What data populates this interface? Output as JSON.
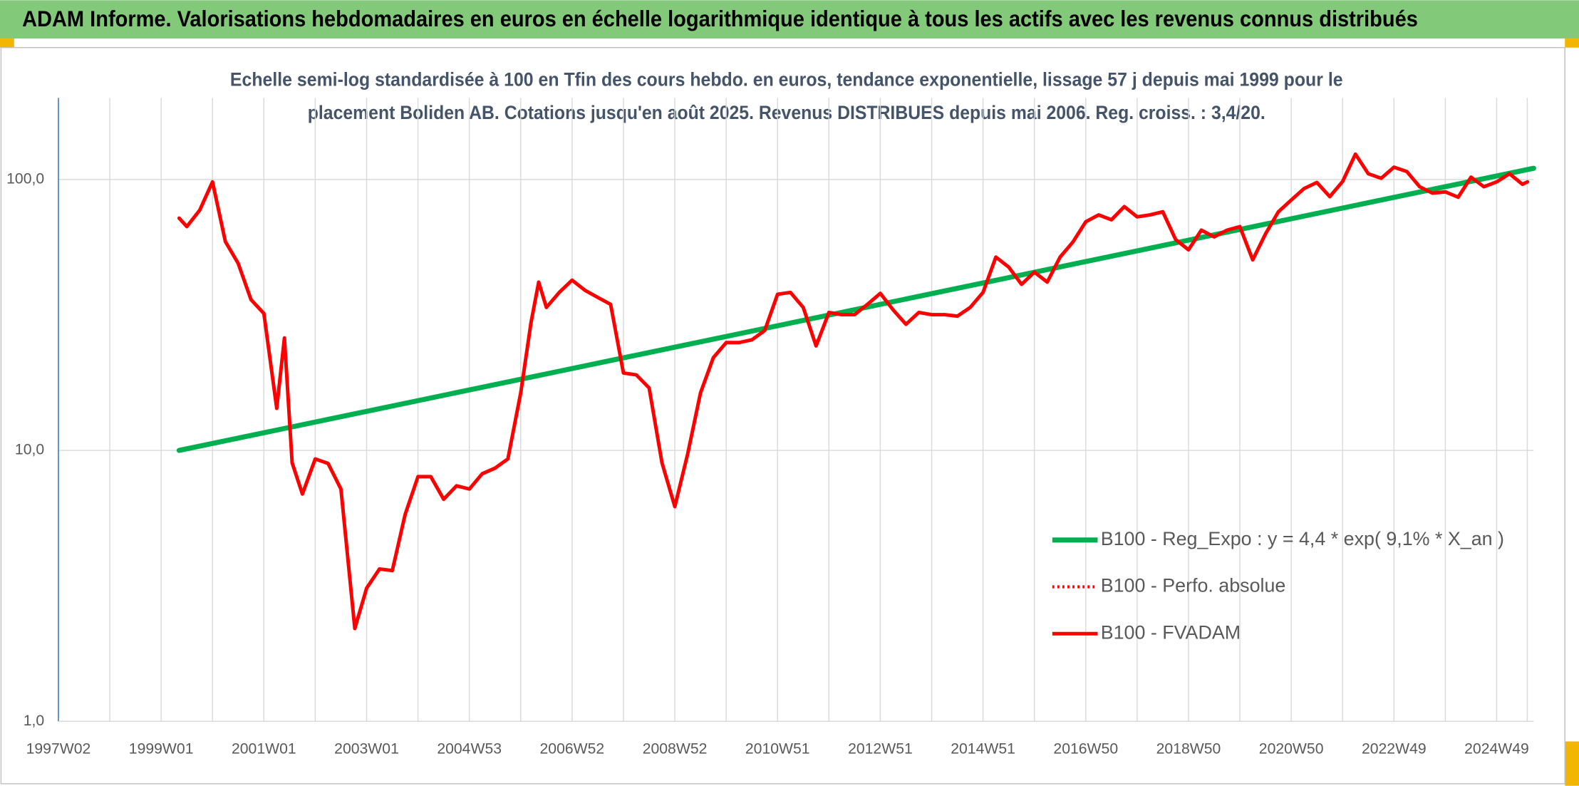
{
  "chart_data": {
    "type": "line",
    "title": "ADAM Informe. Valorisations hebdomadaires en euros en échelle logarithmique identique à tous les actifs avec les revenus connus distribués",
    "subtitle": [
      "Echelle semi-log standardisée à 100 en Tfin des cours hebdo. en euros, tendance exponentielle, lissage 57 j depuis mai 1999 pour le",
      "placement Boliden AB. Cotations jusqu'en août 2025. Revenus DISTRIBUES depuis mai 2006. Reg. croiss. : 3,4/20."
    ],
    "xlim": [
      1997,
      2025.72
    ],
    "xticks": [
      {
        "value": 1997,
        "label": "1997W02"
      },
      {
        "value": 1999,
        "label": "1999W01"
      },
      {
        "value": 2001,
        "label": "2001W01"
      },
      {
        "value": 2003,
        "label": "2003W01"
      },
      {
        "value": 2005,
        "label": "2004W53"
      },
      {
        "value": 2007,
        "label": "2006W52"
      },
      {
        "value": 2009,
        "label": "2008W52"
      },
      {
        "value": 2011,
        "label": "2010W51"
      },
      {
        "value": 2013,
        "label": "2012W51"
      },
      {
        "value": 2015,
        "label": "2014W51"
      },
      {
        "value": 2017,
        "label": "2016W50"
      },
      {
        "value": 2019,
        "label": "2018W50"
      },
      {
        "value": 2021,
        "label": "2020W50"
      },
      {
        "value": 2023,
        "label": "2022W49"
      },
      {
        "value": 2025,
        "label": "2024W49"
      }
    ],
    "ylim": [
      1,
      200
    ],
    "yticks": [
      {
        "value": 1,
        "label": "1,0"
      },
      {
        "value": 10,
        "label": "10,0"
      },
      {
        "value": 100,
        "label": "100,0"
      }
    ],
    "log_scale": true,
    "grid": true,
    "legend": "right",
    "series": [
      {
        "name": "B100 - Reg_Expo : y = 4,4 * exp( 9,1% *  X_an )",
        "color": "#00b050",
        "style": "solid",
        "x": [
          1999.35,
          2025.72
        ],
        "values": [
          10,
          110
        ]
      },
      {
        "name": "B100 - Perfo. absolue",
        "color": "#ff0000",
        "style": "dotted",
        "x": [
          1999.35,
          1999.5,
          1999.75,
          2000.0,
          2000.25,
          2000.5,
          2000.75,
          2001.0,
          2001.25,
          2001.4,
          2001.55,
          2001.75,
          2002.0,
          2002.25,
          2002.5,
          2002.77,
          2003.0,
          2003.25,
          2003.5,
          2003.75,
          2004.0,
          2004.25,
          2004.5,
          2004.75,
          2005.0,
          2005.25,
          2005.5,
          2005.75,
          2006.0,
          2006.2,
          2006.35,
          2006.5,
          2006.75,
          2007.0,
          2007.25,
          2007.5,
          2007.75,
          2008.0,
          2008.25,
          2008.5,
          2008.75,
          2009.0,
          2009.25,
          2009.5,
          2009.75,
          2010.0,
          2010.25,
          2010.5,
          2010.75,
          2011.0,
          2011.25,
          2011.5,
          2011.75,
          2012.0,
          2012.25,
          2012.5,
          2012.75,
          2013.0,
          2013.25,
          2013.5,
          2013.75,
          2014.0,
          2014.25,
          2014.5,
          2014.75,
          2015.0,
          2015.25,
          2015.5,
          2015.75,
          2016.0,
          2016.25,
          2016.5,
          2016.75,
          2017.0,
          2017.25,
          2017.5,
          2017.75,
          2018.0,
          2018.25,
          2018.5,
          2018.75,
          2019.0,
          2019.25,
          2019.5,
          2019.75,
          2020.0,
          2020.25,
          2020.5,
          2020.75,
          2021.0,
          2021.25,
          2021.5,
          2021.75,
          2022.0,
          2022.25,
          2022.5,
          2022.75,
          2023.0,
          2023.25,
          2023.5,
          2023.75,
          2024.0,
          2024.25,
          2024.5,
          2024.75,
          2025.0,
          2025.25,
          2025.5,
          2025.6
        ],
        "values": [
          72,
          67,
          77,
          98,
          59,
          49,
          36,
          32,
          14.3,
          26,
          9,
          6.9,
          9.3,
          8.95,
          7.2,
          2.2,
          3.1,
          3.65,
          3.6,
          5.8,
          8,
          8,
          6.6,
          7.4,
          7.2,
          8.2,
          8.6,
          9.3,
          16.3,
          29.6,
          41.8,
          33.7,
          38.3,
          42.5,
          39,
          36.7,
          34.6,
          19.3,
          19,
          17,
          9,
          6.2,
          9.7,
          16.3,
          22,
          25,
          25,
          25.6,
          27.7,
          37.7,
          38.3,
          33.7,
          24.3,
          32.3,
          31.7,
          31.7,
          34.6,
          38,
          33,
          29.2,
          32.3,
          31.7,
          31.7,
          31.3,
          33.7,
          38.3,
          51.7,
          47.5,
          41,
          45.5,
          41.8,
          51.7,
          58.8,
          69.8,
          74,
          71,
          79.4,
          72.8,
          74,
          76,
          60,
          55,
          65,
          61.4,
          65,
          67,
          50.5,
          63,
          76,
          84,
          92.6,
          97.5,
          86.4,
          98.3,
          124,
          105,
          101,
          111,
          107,
          94,
          89,
          90,
          86,
          102,
          94,
          98,
          105,
          96,
          98
        ]
      },
      {
        "name": "B100 - FVADAM",
        "color": "#ff0000",
        "style": "solid",
        "x": [
          1999.35,
          1999.5,
          1999.75,
          2000.0,
          2000.25,
          2000.5,
          2000.75,
          2001.0,
          2001.25,
          2001.4,
          2001.55,
          2001.75,
          2002.0,
          2002.25,
          2002.5,
          2002.77,
          2003.0,
          2003.25,
          2003.5,
          2003.75,
          2004.0,
          2004.25,
          2004.5,
          2004.75,
          2005.0,
          2005.25,
          2005.5,
          2005.75,
          2006.0,
          2006.2,
          2006.35,
          2006.5,
          2006.75,
          2007.0,
          2007.25,
          2007.5,
          2007.75,
          2008.0,
          2008.25,
          2008.5,
          2008.75,
          2009.0,
          2009.25,
          2009.5,
          2009.75,
          2010.0,
          2010.25,
          2010.5,
          2010.75,
          2011.0,
          2011.25,
          2011.5,
          2011.75,
          2012.0,
          2012.25,
          2012.5,
          2012.75,
          2013.0,
          2013.25,
          2013.5,
          2013.75,
          2014.0,
          2014.25,
          2014.5,
          2014.75,
          2015.0,
          2015.25,
          2015.5,
          2015.75,
          2016.0,
          2016.25,
          2016.5,
          2016.75,
          2017.0,
          2017.25,
          2017.5,
          2017.75,
          2018.0,
          2018.25,
          2018.5,
          2018.75,
          2019.0,
          2019.25,
          2019.5,
          2019.75,
          2020.0,
          2020.25,
          2020.5,
          2020.75,
          2021.0,
          2021.25,
          2021.5,
          2021.75,
          2022.0,
          2022.25,
          2022.5,
          2022.75,
          2023.0,
          2023.25,
          2023.5,
          2023.75,
          2024.0,
          2024.25,
          2024.5,
          2024.75,
          2025.0,
          2025.25,
          2025.5,
          2025.6
        ],
        "values": [
          72,
          67,
          77,
          98,
          59,
          49,
          36,
          32,
          14.3,
          26,
          9,
          6.9,
          9.3,
          8.95,
          7.2,
          2.2,
          3.1,
          3.65,
          3.6,
          5.8,
          8,
          8,
          6.6,
          7.4,
          7.2,
          8.2,
          8.6,
          9.3,
          16.3,
          29.6,
          41.8,
          33.7,
          38.3,
          42.5,
          39,
          36.7,
          34.6,
          19.3,
          19,
          17,
          9,
          6.2,
          9.7,
          16.3,
          22,
          25,
          25,
          25.6,
          27.7,
          37.7,
          38.3,
          33.7,
          24.3,
          32.3,
          31.7,
          31.7,
          34.6,
          38,
          33,
          29.2,
          32.3,
          31.7,
          31.7,
          31.3,
          33.7,
          38.3,
          51.7,
          47.5,
          41,
          45.5,
          41.8,
          51.7,
          58.8,
          69.8,
          74,
          71,
          79.4,
          72.8,
          74,
          76,
          60,
          55,
          65,
          61.4,
          65,
          67,
          50.5,
          63,
          76,
          84,
          92.6,
          97.5,
          86.4,
          98.3,
          124,
          105,
          101,
          111,
          107,
          94,
          89,
          90,
          86,
          102,
          94,
          98,
          105,
          96,
          98
        ]
      }
    ]
  }
}
